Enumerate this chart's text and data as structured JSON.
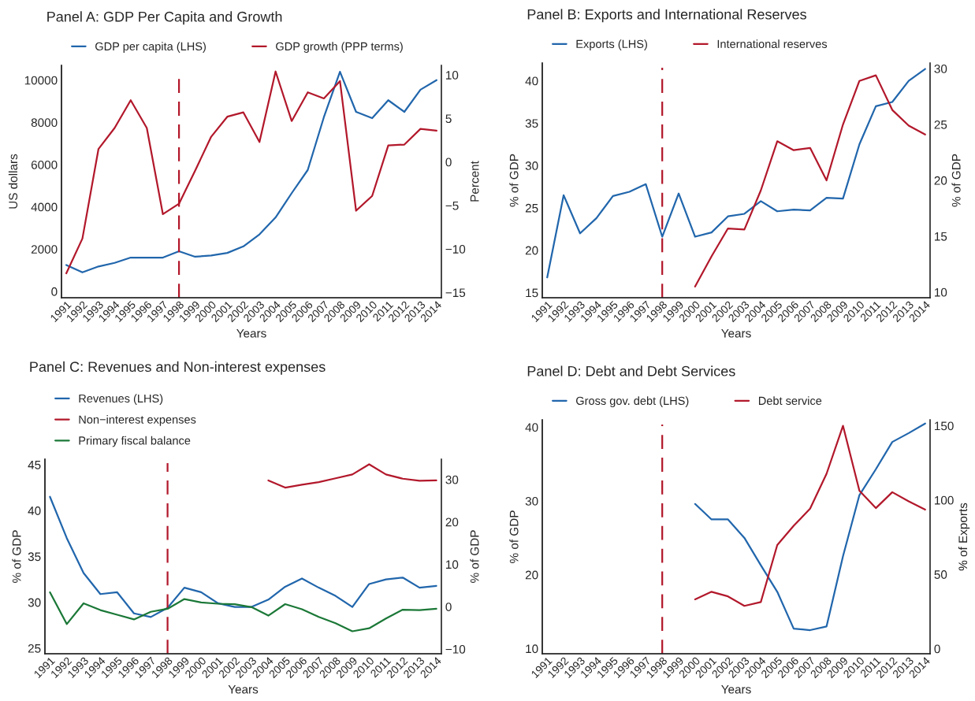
{
  "chart_data": [
    {
      "type": "line",
      "title": "Panel A: GDP Per Capita and Growth",
      "xlabel": "Years",
      "ylabel": "US dollars",
      "y2label": "Percent",
      "legend": "top",
      "categories": [
        "1991",
        "1992",
        "1993",
        "1994",
        "1995",
        "1996",
        "1997",
        "1998",
        "1999",
        "2000",
        "2001",
        "2002",
        "2003",
        "2004",
        "2005",
        "2006",
        "2007",
        "2008",
        "2009",
        "2010",
        "2011",
        "2012",
        "2013",
        "2014"
      ],
      "series": [
        {
          "name": "GDP per capita (LHS)",
          "color": "#2166ac",
          "values": [
            1250,
            900,
            1180,
            1350,
            1600,
            1600,
            1600,
            1900,
            1640,
            1700,
            1820,
            2130,
            2700,
            3500,
            4650,
            5750,
            8250,
            10400,
            8500,
            8200,
            9050,
            8500,
            9550,
            10000
          ]
        },
        {
          "name": "GDP growth (PPP terms)",
          "color": "#b2182b",
          "axis": "y2",
          "values": [
            -12.8,
            -8.8,
            1.5,
            3.9,
            7.1,
            3.9,
            -6.0,
            -4.8,
            -1.0,
            2.9,
            5.2,
            5.7,
            2.3,
            10.4,
            4.7,
            8.0,
            7.3,
            9.3,
            -5.6,
            -3.9,
            1.9,
            2.0,
            3.8,
            3.6
          ]
        }
      ],
      "ylim": [
        -300,
        10700
      ],
      "yticks": [
        0,
        2000,
        4000,
        6000,
        8000,
        10000
      ],
      "y2lim": [
        -15.6,
        11.1
      ],
      "y2ticks": [
        {
          "value": -15,
          "label": "−15"
        },
        {
          "value": -10,
          "label": "−10"
        },
        {
          "value": -5,
          "label": "−5"
        },
        0,
        5,
        10
      ],
      "ref_lines": [
        {
          "axis": "x",
          "value": "1998",
          "color": "#b2182b",
          "line_style": "dashed"
        }
      ]
    },
    {
      "type": "line",
      "title": "Panel B: Exports and International Reserves",
      "xlabel": "Years",
      "ylabel": "% of GDP",
      "y2label": "% of GDP",
      "legend": "top",
      "categories": [
        "1991",
        "1992",
        "1993",
        "1994",
        "1995",
        "1996",
        "1997",
        "1998",
        "1999",
        "2000",
        "2001",
        "2002",
        "2003",
        "2004",
        "2005",
        "2006",
        "2007",
        "2008",
        "2009",
        "2010",
        "2011",
        "2012",
        "2013",
        "2014"
      ],
      "series": [
        {
          "name": "Exports (LHS)",
          "color": "#2166ac",
          "values": [
            16.8,
            26.5,
            22.0,
            23.8,
            26.4,
            26.9,
            27.8,
            21.6,
            26.7,
            21.6,
            22.1,
            24.0,
            24.3,
            25.8,
            24.6,
            24.8,
            24.7,
            26.2,
            26.1,
            32.5,
            37.0,
            37.5,
            40.0,
            41.4
          ]
        },
        {
          "name": "International reserves",
          "color": "#b2182b",
          "axis": "y2",
          "values": [
            null,
            null,
            null,
            null,
            null,
            null,
            null,
            null,
            null,
            10.5,
            13.2,
            15.7,
            15.6,
            19.1,
            23.5,
            22.7,
            22.9,
            20.0,
            25.0,
            28.9,
            29.4,
            26.3,
            24.9,
            24.1
          ]
        }
      ],
      "ylim": [
        14.4,
        42.1
      ],
      "yticks": [
        15,
        20,
        25,
        30,
        35,
        40
      ],
      "y2lim": [
        9.5,
        30.5
      ],
      "y2ticks": [
        10,
        15,
        20,
        25,
        30
      ],
      "ref_lines": [
        {
          "axis": "x",
          "value": "1998",
          "color": "#b2182b",
          "line_style": "dashed"
        }
      ]
    },
    {
      "type": "line",
      "title": "Panel C: Revenues and Non-interest expenses",
      "xlabel": "Years",
      "ylabel": "% of GDP",
      "y2label": "% of GDP",
      "legend": "top",
      "categories": [
        "1991",
        "1992",
        "1993",
        "1994",
        "1995",
        "1996",
        "1997",
        "1998",
        "1999",
        "2000",
        "2001",
        "2002",
        "2003",
        "2004",
        "2005",
        "2006",
        "2007",
        "2008",
        "2009",
        "2010",
        "2011",
        "2012",
        "2013",
        "2014"
      ],
      "series": [
        {
          "name": "Revenues (LHS)",
          "color": "#2166ac",
          "values": [
            41.5,
            37.0,
            33.2,
            30.9,
            31.1,
            28.8,
            28.4,
            29.4,
            31.6,
            31.1,
            29.9,
            29.5,
            29.5,
            30.3,
            31.7,
            32.6,
            31.6,
            30.7,
            29.5,
            32.0,
            32.5,
            32.7,
            31.6,
            31.8
          ]
        },
        {
          "name": "Non−interest expenses",
          "color": "#b2182b",
          "axis": "y2",
          "values": [
            null,
            null,
            null,
            null,
            null,
            null,
            null,
            null,
            null,
            null,
            null,
            null,
            null,
            29.8,
            28.1,
            28.8,
            29.4,
            30.3,
            31.2,
            33.6,
            31.2,
            30.2,
            29.7,
            29.8
          ]
        },
        {
          "name": "Primary fiscal balance",
          "color": "#1b7837",
          "axis": "y2",
          "values": [
            3.4,
            -4.1,
            0.8,
            -0.8,
            -1.9,
            -3.0,
            -1.2,
            -0.5,
            1.8,
            1.0,
            0.7,
            0.6,
            -0.1,
            -2.1,
            0.6,
            -0.6,
            -2.4,
            -3.9,
            -5.8,
            -5.1,
            -2.8,
            -0.7,
            -0.8,
            -0.5
          ]
        }
      ],
      "ylim": [
        24.4,
        45.6
      ],
      "yticks": [
        25,
        30,
        35,
        40,
        45
      ],
      "y2lim": [
        -11.1,
        34.8
      ],
      "y2ticks": [
        {
          "value": -10,
          "label": "−10"
        },
        0,
        10,
        20,
        30
      ],
      "ref_lines": [
        {
          "axis": "x",
          "value": "1998",
          "color": "#b2182b",
          "line_style": "dashed"
        }
      ]
    },
    {
      "type": "line",
      "title": "Panel D: Debt and Debt Services",
      "xlabel": "Years",
      "ylabel": "% of GDP",
      "y2label": "% of Exports",
      "legend": "top",
      "categories": [
        "1991",
        "1992",
        "1993",
        "1994",
        "1995",
        "1996",
        "1997",
        "1998",
        "1999",
        "2000",
        "2001",
        "2002",
        "2003",
        "2004",
        "2005",
        "2006",
        "2007",
        "2008",
        "2009",
        "2010",
        "2011",
        "2012",
        "2013",
        "2014"
      ],
      "series": [
        {
          "name": "Gross gov. debt (LHS)",
          "color": "#2166ac",
          "values": [
            null,
            null,
            null,
            null,
            null,
            null,
            null,
            null,
            null,
            29.6,
            27.5,
            27.5,
            25.0,
            21.3,
            17.7,
            12.7,
            12.5,
            13.0,
            22.5,
            30.8,
            34.3,
            38.0,
            39.2,
            40.5
          ]
        },
        {
          "name": "Debt service",
          "color": "#b2182b",
          "axis": "y2",
          "values": [
            null,
            null,
            null,
            null,
            null,
            null,
            null,
            null,
            null,
            33.2,
            38.3,
            35.2,
            28.8,
            31.4,
            69.7,
            82.7,
            94.2,
            117.7,
            150,
            106.3,
            94.6,
            105.3,
            99.2,
            93.6
          ]
        }
      ],
      "ylim": [
        9.3,
        41.0
      ],
      "yticks": [
        10,
        20,
        30,
        40
      ],
      "y2lim": [
        -3.4,
        154
      ],
      "y2ticks": [
        0,
        50,
        100,
        150
      ],
      "ref_lines": [
        {
          "axis": "x",
          "value": "1998",
          "color": "#b2182b",
          "line_style": "dashed"
        }
      ]
    }
  ]
}
